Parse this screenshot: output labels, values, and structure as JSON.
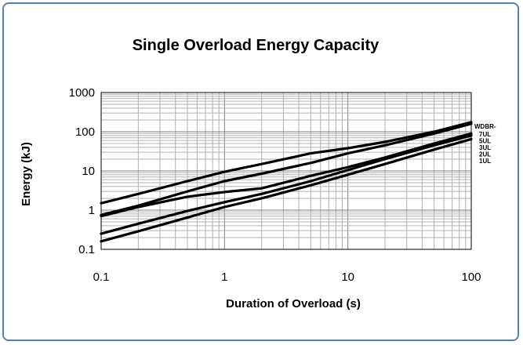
{
  "chart_data": {
    "type": "line",
    "title": "Single Overload Energy Capacity",
    "xlabel": "Duration of Overload (s)",
    "ylabel": "Energy (kJ)",
    "xscale": "log",
    "yscale": "log",
    "xlim": [
      0.1,
      100
    ],
    "ylim": [
      0.1,
      1000
    ],
    "x_ticks": [
      "0.1",
      "1",
      "10",
      "100"
    ],
    "y_ticks": [
      "0.1",
      "1",
      "10",
      "100",
      "1000"
    ],
    "grid": "major and minor",
    "legend_header": "WDBR-",
    "legend_position": "right",
    "series": [
      {
        "name": "7UL",
        "x": [
          0.1,
          0.2,
          0.5,
          1,
          2,
          5,
          10,
          20,
          50,
          100
        ],
        "values": [
          1.5,
          2.6,
          5.5,
          9.5,
          15,
          28,
          38,
          55,
          100,
          175
        ]
      },
      {
        "name": "5UL",
        "x": [
          0.1,
          0.2,
          0.5,
          1,
          2,
          5,
          10,
          20,
          50,
          100
        ],
        "values": [
          0.75,
          1.3,
          3.0,
          5.5,
          8.5,
          16,
          28,
          45,
          90,
          160
        ]
      },
      {
        "name": "3UL",
        "x": [
          0.1,
          0.2,
          0.5,
          1,
          2,
          5,
          10,
          20,
          50,
          100
        ],
        "values": [
          0.7,
          1.2,
          2.2,
          2.9,
          3.6,
          7.5,
          12.5,
          22,
          50,
          90
        ]
      },
      {
        "name": "2UL",
        "x": [
          0.1,
          0.2,
          0.5,
          1,
          2,
          5,
          10,
          20,
          50,
          100
        ],
        "values": [
          0.25,
          0.45,
          0.95,
          1.6,
          2.6,
          5.5,
          10.5,
          20,
          45,
          80
        ]
      },
      {
        "name": "1UL",
        "x": [
          0.1,
          0.2,
          0.5,
          1,
          2,
          5,
          10,
          20,
          50,
          100
        ],
        "values": [
          0.16,
          0.29,
          0.65,
          1.2,
          2.0,
          4.3,
          8.0,
          15,
          35,
          65
        ]
      }
    ],
    "line_color": "#000000"
  }
}
